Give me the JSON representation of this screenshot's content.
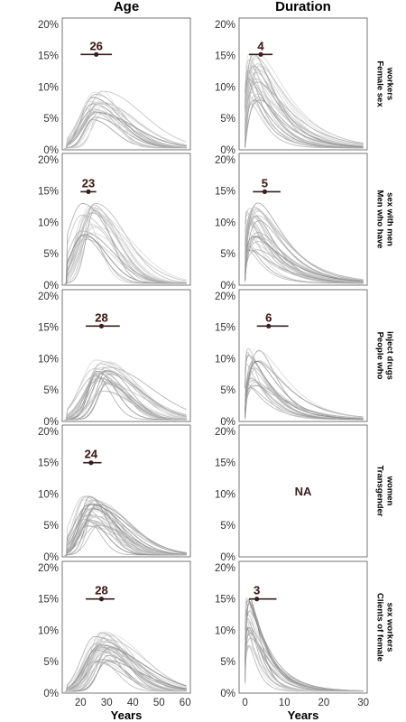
{
  "chart_data": {
    "type": "line",
    "columns": [
      {
        "title": "Age",
        "xlabel": "Years",
        "xlim": [
          13,
          62
        ],
        "xticks": [
          20,
          30,
          40,
          50,
          60
        ]
      },
      {
        "title": "Duration",
        "xlabel": "Years",
        "xlim": [
          -1.5,
          31
        ],
        "xticks": [
          0,
          10,
          20,
          30
        ]
      }
    ],
    "ylim": [
      0,
      0.21
    ],
    "yticks": [
      "0%",
      "5%",
      "10%",
      "15%",
      "20%"
    ],
    "yticks_values": [
      0,
      0.05,
      0.1,
      0.15,
      0.2
    ],
    "rows": [
      {
        "label": [
          "Female sex",
          "workers"
        ],
        "age": {
          "median": 26,
          "ci": [
            20,
            32
          ],
          "median_y": 0.152
        },
        "duration": {
          "median": 4,
          "ci": [
            1,
            7
          ],
          "median_y": 0.152
        }
      },
      {
        "label": [
          "Men who have",
          "sex with men"
        ],
        "age": {
          "median": 23,
          "ci": [
            20,
            26
          ],
          "median_y": 0.149
        },
        "duration": {
          "median": 5,
          "ci": [
            2,
            9
          ],
          "median_y": 0.149
        }
      },
      {
        "label": [
          "People who",
          "inject drugs"
        ],
        "age": {
          "median": 28,
          "ci": [
            22,
            35
          ],
          "median_y": 0.152
        },
        "duration": {
          "median": 6,
          "ci": [
            3,
            11
          ],
          "median_y": 0.152
        }
      },
      {
        "label": [
          "Transgender",
          "women"
        ],
        "age": {
          "median": 24,
          "ci": [
            21,
            28
          ],
          "median_y": 0.15
        },
        "duration": {
          "na": "NA"
        }
      },
      {
        "label": [
          "Clients of female",
          "sex workers"
        ],
        "age": {
          "median": 28,
          "ci": [
            22,
            33
          ],
          "median_y": 0.15
        },
        "duration": {
          "median": 3,
          "ci": [
            1,
            8
          ],
          "median_y": 0.15
        }
      }
    ]
  }
}
